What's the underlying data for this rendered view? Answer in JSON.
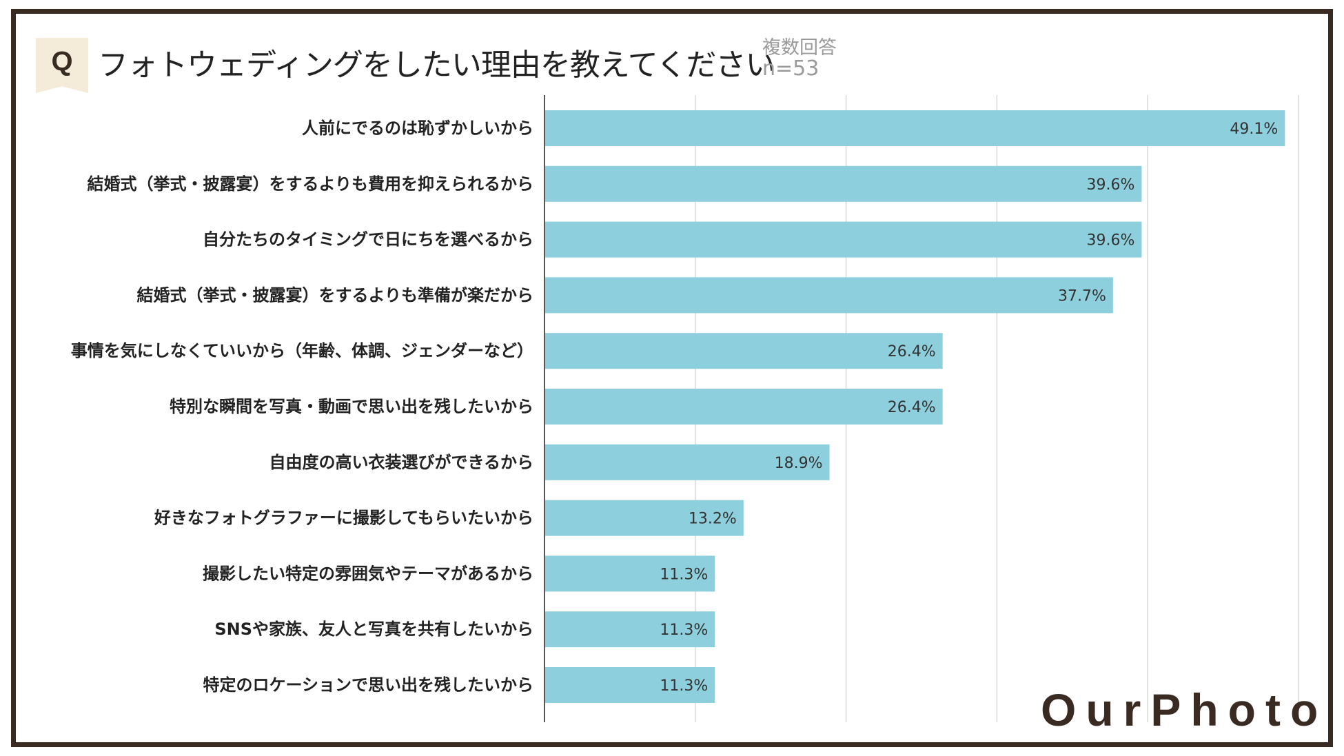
{
  "header": {
    "q_label": "Q",
    "title": "フォトウェディングをしたい理由を教えてください",
    "note_type": "複数回答",
    "note_n": "n=53"
  },
  "brand": {
    "logo_text": "OurPhoto"
  },
  "colors": {
    "bar": "#8dcfdc",
    "frame": "#3a2b22",
    "grid": "#d9d9d9",
    "badge": "#f4ecd8"
  },
  "chart_data": {
    "type": "bar",
    "orientation": "horizontal",
    "title": "フォトウェディングをしたい理由を教えてください",
    "categories": [
      "人前にでるのは恥ずかしいから",
      "結婚式（挙式・披露宴）をするよりも費用を抑えられるから",
      "自分たちのタイミングで日にちを選べるから",
      "結婚式（挙式・披露宴）をするよりも準備が楽だから",
      "事情を気にしなくていいから（年齢、体調、ジェンダーなど）",
      "特別な瞬間を写真・動画で思い出を残したいから",
      "自由度の高い衣装選びができるから",
      "好きなフォトグラファーに撮影してもらいたいから",
      "撮影したい特定の雰囲気やテーマがあるから",
      "SNSや家族、友人と写真を共有したいから",
      "特定のロケーションで思い出を残したいから"
    ],
    "values": [
      49.1,
      39.6,
      39.6,
      37.7,
      26.4,
      26.4,
      18.9,
      13.2,
      11.3,
      11.3,
      11.3
    ],
    "value_labels": [
      "49.1%",
      "39.6%",
      "39.6%",
      "37.7%",
      "26.4%",
      "26.4%",
      "18.9%",
      "13.2%",
      "11.3%",
      "11.3%",
      "11.3%"
    ],
    "xlim": [
      0,
      60
    ],
    "grid_step": 10,
    "xlabel": "",
    "ylabel": ""
  }
}
